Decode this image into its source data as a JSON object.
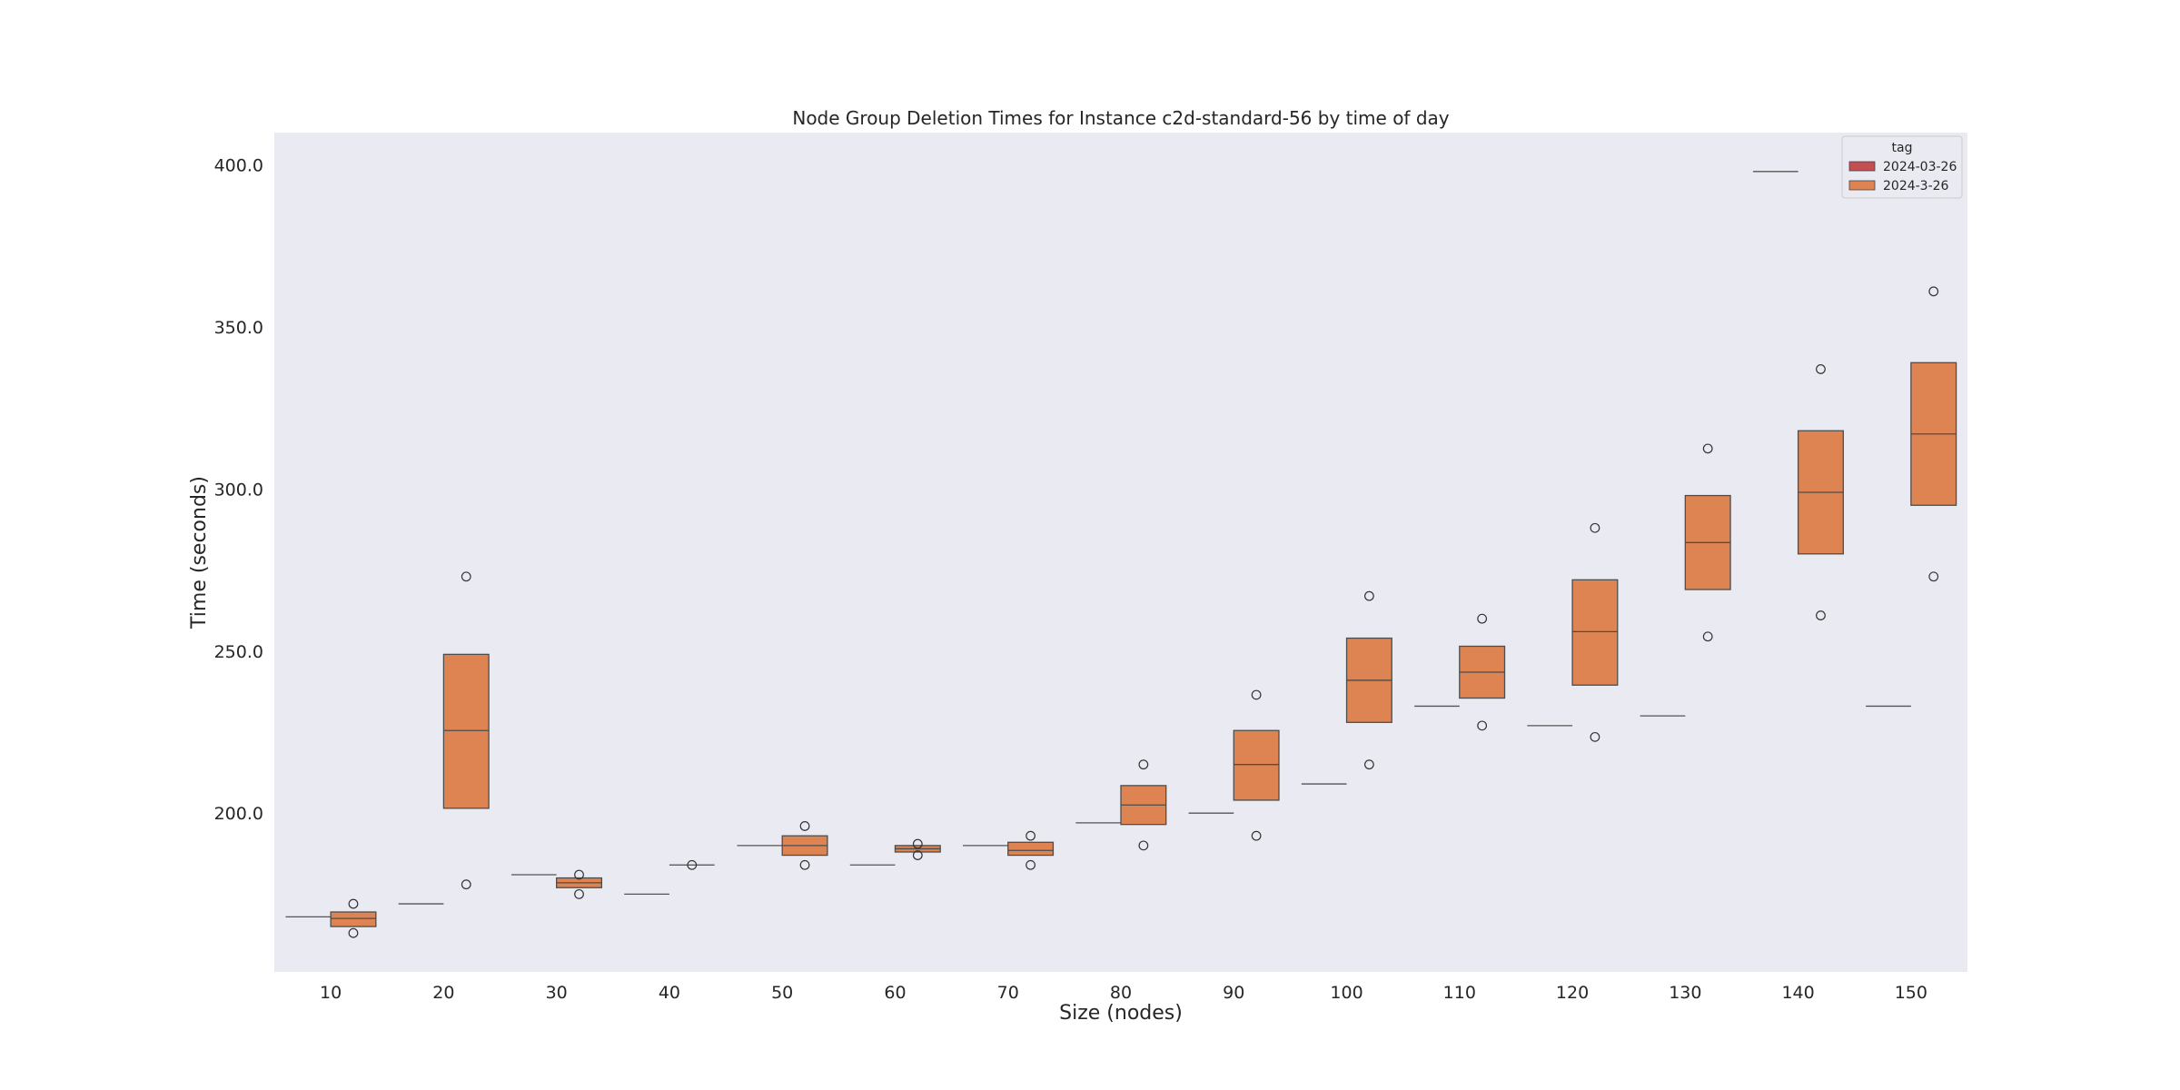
{
  "chart_data": {
    "type": "box",
    "title": "Node Group Deletion Times for Instance c2d-standard-56 by time of day",
    "xlabel": "Size (nodes)",
    "ylabel": "Time (seconds)",
    "categories": [
      "10",
      "20",
      "30",
      "40",
      "50",
      "60",
      "70",
      "80",
      "90",
      "100",
      "110",
      "120",
      "130",
      "140",
      "150"
    ],
    "yticks": [
      "200.0",
      "250.0",
      "300.0",
      "350.0",
      "400.0"
    ],
    "ylim": [
      151,
      410
    ],
    "grid": false,
    "legend": {
      "title": "tag",
      "position": "top-right",
      "entries": [
        {
          "label": "2024-03-26",
          "color": "#c44e52"
        },
        {
          "label": "2024-3-26",
          "color": "#dd8452"
        }
      ]
    },
    "series": [
      {
        "name": "2024-03-26",
        "color": "#c44e52",
        "values": [
          168,
          172,
          181,
          175,
          190,
          184,
          190,
          197,
          200,
          209,
          233,
          227,
          230,
          398,
          233
        ]
      },
      {
        "name": "2024-3-26",
        "color": "#dd8452",
        "boxes": [
          {
            "q1": 165,
            "median": 167.5,
            "q3": 169.5,
            "outliers": [
              172,
              163
            ]
          },
          {
            "q1": 201.5,
            "median": 225.5,
            "q3": 249,
            "outliers": [
              273,
              178
            ]
          },
          {
            "q1": 177,
            "median": 178.5,
            "q3": 180,
            "outliers": [
              181,
              175
            ]
          },
          {
            "q1": 184,
            "median": 184,
            "q3": 184,
            "outliers": [
              184
            ]
          },
          {
            "q1": 187,
            "median": 190,
            "q3": 193,
            "outliers": [
              196,
              184
            ]
          },
          {
            "q1": 188,
            "median": 189,
            "q3": 190,
            "outliers": [
              190.5,
              187
            ]
          },
          {
            "q1": 187,
            "median": 188.5,
            "q3": 191,
            "outliers": [
              193,
              184
            ]
          },
          {
            "q1": 196.5,
            "median": 202.5,
            "q3": 208.5,
            "outliers": [
              215,
              190
            ]
          },
          {
            "q1": 204,
            "median": 215,
            "q3": 225.5,
            "outliers": [
              236.5,
              193
            ]
          },
          {
            "q1": 228,
            "median": 241,
            "q3": 254,
            "outliers": [
              267,
              215
            ]
          },
          {
            "q1": 235.5,
            "median": 243.5,
            "q3": 251.5,
            "outliers": [
              260,
              227
            ]
          },
          {
            "q1": 239.5,
            "median": 256,
            "q3": 272,
            "outliers": [
              288,
              223.5
            ]
          },
          {
            "q1": 269,
            "median": 283.5,
            "q3": 298,
            "outliers": [
              312.5,
              254.5
            ]
          },
          {
            "q1": 280,
            "median": 299,
            "q3": 318,
            "outliers": [
              337,
              261
            ]
          },
          {
            "q1": 295,
            "median": 317,
            "q3": 339,
            "outliers": [
              361,
              273
            ]
          }
        ]
      }
    ]
  }
}
